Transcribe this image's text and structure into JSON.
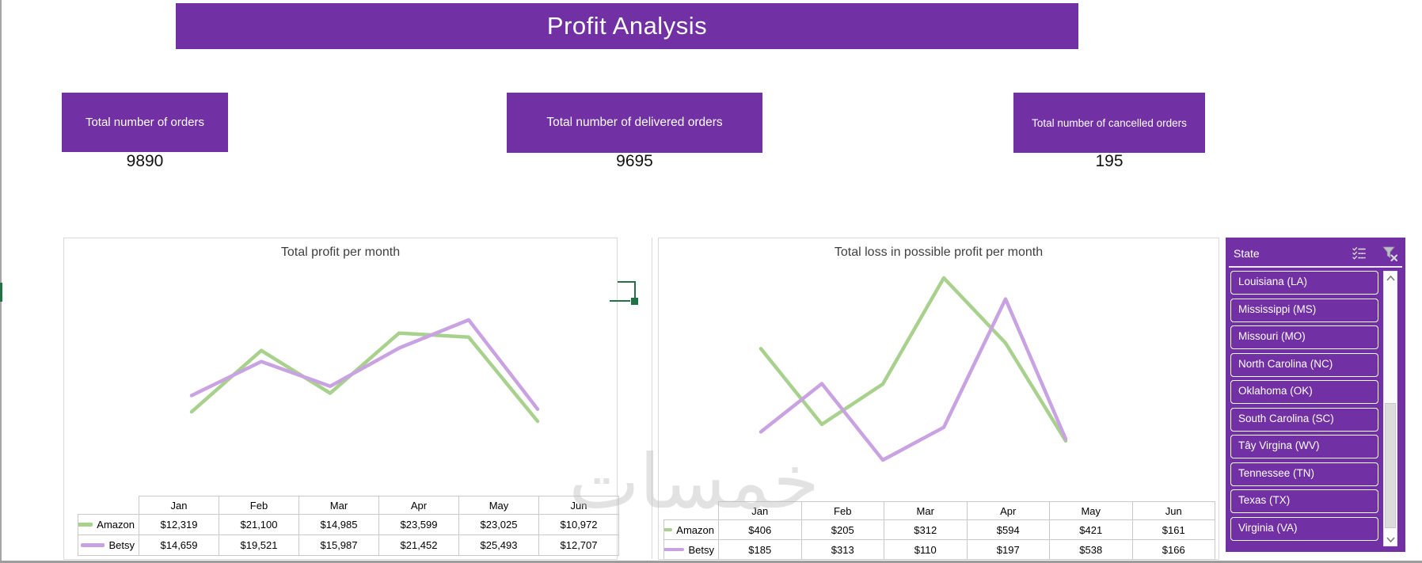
{
  "banner": {
    "title": "Profit Analysis"
  },
  "kpis": [
    {
      "label": "Total number of orders",
      "value": "9890"
    },
    {
      "label": "Total number of delivered orders",
      "value": "9695"
    },
    {
      "label": "Total number of cancelled orders",
      "value": "195"
    }
  ],
  "chart_data": [
    {
      "type": "line",
      "title": "Total profit per month",
      "categories": [
        "Jan",
        "Feb",
        "Mar",
        "Apr",
        "May",
        "Jun"
      ],
      "series": [
        {
          "name": "Amazon",
          "color": "#A9D18E",
          "values": [
            12319,
            21100,
            14985,
            23599,
            23025,
            10972
          ],
          "display": [
            "$12,319",
            "$21,100",
            "$14,985",
            "$23,599",
            "$23,025",
            "$10,972"
          ]
        },
        {
          "name": "Betsy",
          "color": "#C9A2E1",
          "values": [
            14659,
            19521,
            15987,
            21452,
            25493,
            12707
          ],
          "display": [
            "$14,659",
            "$19,521",
            "$15,987",
            "$21,452",
            "$25,493",
            "$12,707"
          ]
        }
      ],
      "legend_position": "data-table-left",
      "grid": false,
      "ylim": [
        10972,
        25493
      ]
    },
    {
      "type": "line",
      "title": "Total loss in possible profit per month",
      "categories": [
        "Jan",
        "Feb",
        "Mar",
        "Apr",
        "May",
        "Jun"
      ],
      "series": [
        {
          "name": "Amazon",
          "color": "#A9D18E",
          "values": [
            406,
            205,
            312,
            594,
            421,
            161
          ],
          "display": [
            "$406",
            "$205",
            "$312",
            "$594",
            "$421",
            "$161"
          ]
        },
        {
          "name": "Betsy",
          "color": "#C9A2E1",
          "values": [
            185,
            313,
            110,
            197,
            538,
            166
          ],
          "display": [
            "$185",
            "$313",
            "$110",
            "$197",
            "$538",
            "$166"
          ]
        }
      ],
      "legend_position": "data-table-left",
      "grid": false,
      "ylim": [
        110,
        594
      ]
    }
  ],
  "slicer": {
    "title": "State",
    "items": [
      "Louisiana (LA)",
      "Mississippi (MS)",
      "Missouri (MO)",
      "North Carolina (NC)",
      "Oklahoma (OK)",
      "South Carolina (SC)",
      "Tây Virgina (WV)",
      "Tennessee (TN)",
      "Texas (TX)",
      "Virginia (VA)"
    ]
  },
  "watermark": "خمسات",
  "colors": {
    "accent_purple": "#7130A3",
    "series_green": "#A9D18E",
    "series_purple": "#C9A2E1",
    "selection_green": "#217346",
    "card_border": "#D9D9D9"
  }
}
